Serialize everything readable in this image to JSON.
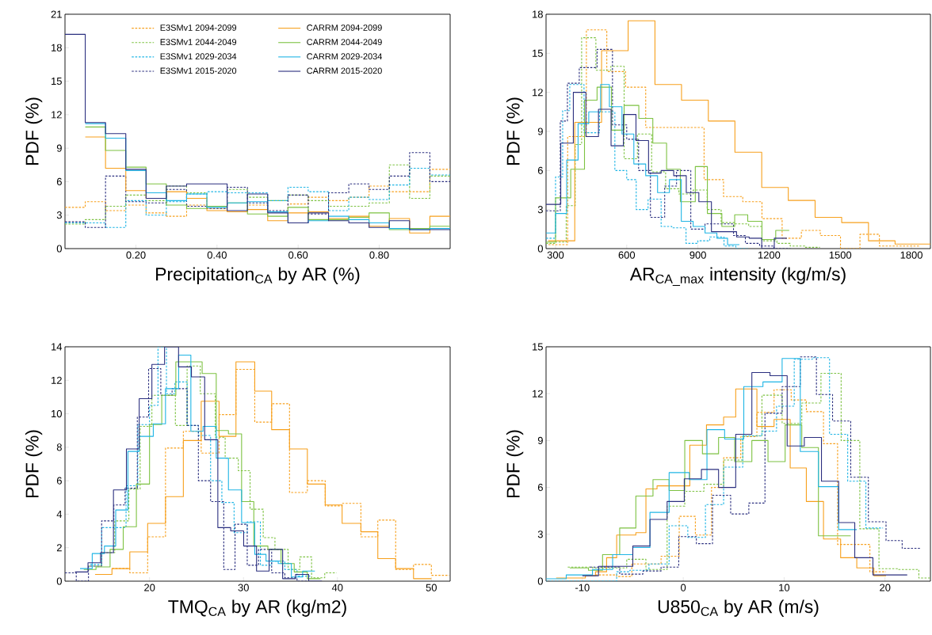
{
  "chart_data": [
    {
      "type": "step",
      "xlabel": "Precipitation$_{CA}$ by AR (%)",
      "ylabel": "PDF (%)",
      "xlim": [
        0.025,
        0.975
      ],
      "ylim": [
        0,
        21
      ],
      "xticks": [
        {
          "value": 0.2,
          "label": "0.20"
        },
        {
          "value": 0.4,
          "label": "0.40"
        },
        {
          "value": 0.6,
          "label": "0.60"
        },
        {
          "value": 0.8,
          "label": "0.80"
        }
      ],
      "yticks": [
        0,
        3,
        6,
        9,
        12,
        15,
        18,
        21
      ],
      "legend": "top",
      "series": [
        {
          "name": "E3SMv1 2094-2099",
          "color": "#f7a01c",
          "line_style": "dashed",
          "x": [
            0.025,
            0.075,
            0.125,
            0.175,
            0.225,
            0.275,
            0.325,
            0.375,
            0.425,
            0.475,
            0.525,
            0.575,
            0.625,
            0.675,
            0.725,
            0.775,
            0.825,
            0.875,
            0.925,
            0.975
          ],
          "values": [
            3.7,
            4.2,
            3.4,
            3.9,
            3.2,
            2.9,
            3.9,
            3.6,
            3.3,
            3.9,
            3.3,
            4.0,
            4.6,
            4.3,
            4.6,
            5.6,
            5.1,
            5.1,
            7.1,
            7.1
          ]
        },
        {
          "name": "E3SMv1 2044-2049",
          "color": "#7dc242",
          "line_style": "dashed",
          "x": [
            0.025,
            0.075,
            0.125,
            0.175,
            0.225,
            0.275,
            0.325,
            0.375,
            0.425,
            0.475,
            0.525,
            0.575,
            0.625,
            0.675,
            0.725,
            0.775,
            0.825,
            0.875,
            0.925,
            0.975
          ],
          "values": [
            2.2,
            2.6,
            3.8,
            4.8,
            4.3,
            5.6,
            5.0,
            3.8,
            5.3,
            4.6,
            4.3,
            4.8,
            4.3,
            3.8,
            3.8,
            4.1,
            7.5,
            4.5,
            6.5,
            6.5
          ]
        },
        {
          "name": "E3SMv1 2029-2034",
          "color": "#1fb5e5",
          "line_style": "dashed",
          "x": [
            0.025,
            0.075,
            0.125,
            0.175,
            0.225,
            0.275,
            0.325,
            0.375,
            0.425,
            0.475,
            0.525,
            0.575,
            0.625,
            0.675,
            0.725,
            0.775,
            0.825,
            0.875,
            0.925,
            0.975
          ],
          "values": [
            2.3,
            2.3,
            1.9,
            4.3,
            3.0,
            4.2,
            4.9,
            5.1,
            5.0,
            5.0,
            4.3,
            5.5,
            5.1,
            3.4,
            4.6,
            4.4,
            5.7,
            7.2,
            6.6,
            6.6
          ]
        },
        {
          "name": "E3SMv1 2015-2020",
          "color": "#2b2f7f",
          "line_style": "dashed",
          "x": [
            0.025,
            0.075,
            0.125,
            0.175,
            0.225,
            0.275,
            0.325,
            0.375,
            0.425,
            0.475,
            0.525,
            0.575,
            0.625,
            0.675,
            0.725,
            0.775,
            0.825,
            0.875,
            0.925,
            0.975
          ],
          "values": [
            2.4,
            1.9,
            6.5,
            4.2,
            4.1,
            5.3,
            3.8,
            3.6,
            5.5,
            4.1,
            3.4,
            4.8,
            3.1,
            5.0,
            5.8,
            5.3,
            6.5,
            8.6,
            6.0,
            6.0
          ]
        },
        {
          "name": "CARRM 2094-2099",
          "color": "#f7a01c",
          "line_style": "solid",
          "x": [
            0.075,
            0.125,
            0.175,
            0.225,
            0.275,
            0.325,
            0.375,
            0.425,
            0.475,
            0.525,
            0.575,
            0.625,
            0.675,
            0.725,
            0.775,
            0.825,
            0.875,
            0.925,
            0.975
          ],
          "values": [
            10.0,
            7.2,
            5.2,
            4.5,
            5.1,
            4.5,
            3.4,
            3.3,
            3.5,
            2.5,
            3.2,
            3.3,
            2.7,
            2.9,
            2.0,
            2.7,
            1.4,
            2.9,
            2.9
          ]
        },
        {
          "name": "CARRM 2044-2049",
          "color": "#7dc242",
          "line_style": "solid",
          "x": [
            0.075,
            0.125,
            0.175,
            0.225,
            0.275,
            0.325,
            0.375,
            0.425,
            0.475,
            0.525,
            0.575,
            0.625,
            0.675,
            0.725,
            0.775,
            0.825,
            0.875,
            0.925,
            0.975
          ],
          "values": [
            10.9,
            8.8,
            7.3,
            5.8,
            3.9,
            3.6,
            3.8,
            4.1,
            3.1,
            2.9,
            3.7,
            2.6,
            2.6,
            2.8,
            3.2,
            1.7,
            1.8,
            2.0,
            2.0
          ]
        },
        {
          "name": "CARRM 2029-2034",
          "color": "#1fb5e5",
          "line_style": "solid",
          "x": [
            0.075,
            0.125,
            0.175,
            0.225,
            0.275,
            0.325,
            0.375,
            0.425,
            0.475,
            0.525,
            0.575,
            0.625,
            0.675,
            0.725,
            0.775,
            0.825,
            0.875,
            0.925,
            0.975
          ],
          "values": [
            11.2,
            9.9,
            7.0,
            5.0,
            4.3,
            4.9,
            3.7,
            4.1,
            4.2,
            3.3,
            2.3,
            2.5,
            2.9,
            2.6,
            2.3,
            1.8,
            1.7,
            1.8,
            1.8
          ]
        },
        {
          "name": "CARRM 2015-2020",
          "color": "#2b2f7f",
          "line_style": "solid",
          "x": [
            0.025,
            0.075,
            0.125,
            0.175,
            0.225,
            0.275,
            0.325,
            0.375,
            0.425,
            0.475,
            0.525,
            0.575,
            0.625,
            0.675,
            0.725,
            0.775,
            0.825,
            0.875,
            0.925,
            0.975
          ],
          "values": [
            19.2,
            11.3,
            10.3,
            7.1,
            4.5,
            5.6,
            5.8,
            5.8,
            3.4,
            4.9,
            3.2,
            2.3,
            3.2,
            2.5,
            2.3,
            1.9,
            2.5,
            1.7,
            1.7,
            1.7
          ]
        }
      ]
    },
    {
      "type": "step",
      "xlabel": "AR$_{CA_max}$ intensity (kg/m/s)",
      "ylabel": "PDF (%)",
      "xlim": [
        260,
        1880
      ],
      "ylim": [
        0,
        18
      ],
      "xticks": [
        300,
        600,
        900,
        1200,
        1500,
        1800
      ],
      "yticks": [
        0,
        3,
        6,
        9,
        12,
        15,
        18
      ],
      "series": [
        {
          "color": "#f7a01c",
          "line_style": "dashed",
          "x": [
            270,
            351,
            430,
            516,
            595,
            680,
            761,
            845,
            926,
            1008,
            1089,
            1170,
            1255,
            1336,
            1416,
            1501,
            1583,
            1665,
            1746,
            1832
          ],
          "values": [
            0.3,
            8.6,
            16.8,
            13.6,
            12.4,
            9.3,
            9.3,
            9.3,
            5.3,
            4.0,
            3.6,
            2.3,
            0.8,
            1.4,
            1.0,
            0,
            1.1,
            0.2,
            0.2,
            0.2
          ]
        },
        {
          "color": "#7dc242",
          "line_style": "dashed",
          "x": [
            260,
            300,
            345,
            383,
            410,
            470,
            533,
            589,
            645,
            705,
            764,
            820,
            880,
            939,
            998,
            1058,
            1114,
            1170,
            1233,
            1289,
            1351,
            1414
          ],
          "values": [
            0.4,
            0.5,
            3.3,
            8.0,
            16.2,
            13.7,
            14.0,
            6.9,
            8.8,
            5.9,
            4.6,
            4.2,
            4.5,
            3.0,
            2.0,
            1.9,
            1.7,
            0.6,
            0.4,
            0.2,
            0.1,
            0.1
          ]
        },
        {
          "color": "#1fb5e5",
          "line_style": "dashed",
          "x": [
            260,
            300,
            330,
            360,
            420,
            485,
            550,
            600,
            640,
            690,
            745,
            790,
            850,
            900,
            950,
            1010,
            1060,
            1110
          ],
          "values": [
            0.8,
            5.5,
            10.6,
            12.6,
            8.9,
            10.5,
            6.0,
            5.3,
            3.0,
            3.8,
            1.7,
            1.6,
            0.4,
            0.6,
            0.9,
            0.2,
            0.0,
            0.0
          ]
        },
        {
          "color": "#2b2f7f",
          "line_style": "dashed",
          "x": [
            260,
            320,
            350,
            400,
            475,
            540,
            600,
            650,
            700,
            760,
            810,
            870,
            930,
            990,
            1050,
            1100,
            1160,
            1220,
            1290
          ],
          "values": [
            2.9,
            9.8,
            12.7,
            13.9,
            15.3,
            9.5,
            8.4,
            6.0,
            2.4,
            4.8,
            6.0,
            1.5,
            1.9,
            1.9,
            1.0,
            0.4,
            0.2,
            0.0,
            0.0
          ]
        },
        {
          "color": "#f7a01c",
          "line_style": "solid",
          "x": [
            269,
            381,
            494,
            606,
            719,
            831,
            944,
            1056,
            1169,
            1281,
            1394,
            1506,
            1619,
            1731,
            1844,
            1880
          ],
          "values": [
            0.6,
            9.7,
            15.2,
            17.5,
            12.6,
            11.4,
            9.8,
            7.4,
            4.7,
            3.7,
            2.4,
            2.0,
            0.6,
            0.35,
            0.35,
            0.35
          ]
        },
        {
          "color": "#7dc242",
          "line_style": "solid",
          "x": [
            260,
            300,
            364,
            422,
            475,
            536,
            589,
            651,
            710,
            768,
            826,
            889,
            940,
            1001,
            1055,
            1110,
            1170,
            1228,
            1285
          ],
          "values": [
            0.5,
            3.9,
            6.1,
            11.4,
            12.4,
            9.1,
            11.0,
            10.0,
            8.1,
            6.1,
            3.6,
            6.3,
            2.7,
            1.7,
            2.6,
            2.1,
            0.7,
            1.4,
            1.4
          ]
        },
        {
          "color": "#1fb5e5",
          "line_style": "solid",
          "x": [
            260,
            300,
            347,
            395,
            440,
            490,
            527,
            580,
            630,
            680,
            730,
            780,
            830,
            880,
            930,
            980,
            1025,
            1075
          ],
          "values": [
            1.2,
            2.7,
            6.8,
            9.6,
            10.5,
            12.6,
            10.9,
            8.8,
            6.5,
            5.6,
            4.3,
            5.3,
            2.1,
            1.7,
            1.2,
            0.8,
            0.3,
            0.3
          ]
        },
        {
          "color": "#2b2f7f",
          "line_style": "solid",
          "x": [
            260,
            322,
            375,
            428,
            481,
            534,
            586,
            639,
            692,
            745,
            798,
            851,
            904,
            957,
            1010,
            1063,
            1116,
            1169,
            1222,
            1275
          ],
          "values": [
            3.4,
            8.1,
            12.0,
            8.6,
            10.7,
            7.9,
            10.3,
            8.3,
            5.8,
            6.0,
            5.6,
            4.3,
            3.6,
            1.3,
            1.3,
            0.9,
            0.8,
            0.0,
            0.8,
            0.8
          ]
        }
      ]
    },
    {
      "type": "step",
      "xlabel": "TMQ$_{CA}$ by AR (kg/m2)",
      "ylabel": "PDF (%)",
      "xlim": [
        11,
        52
      ],
      "ylim": [
        0,
        14
      ],
      "xticks": [
        20,
        30,
        40,
        50
      ],
      "yticks": [
        0,
        2,
        4,
        6,
        8,
        10,
        12,
        14
      ],
      "series": [
        {
          "color": "#f7a01c",
          "line_style": "dashed",
          "x": [
            16.0,
            17.9,
            19.8,
            21.7,
            23.6,
            25.5,
            27.4,
            29.2,
            31.2,
            33.0,
            34.9,
            36.8,
            38.7,
            40.5,
            42.5,
            44.3,
            46.2,
            48.1,
            50.0,
            51.9
          ],
          "values": [
            0.75,
            0.5,
            2.65,
            7.95,
            8.95,
            7.65,
            9.95,
            12.65,
            9.5,
            10.6,
            5.3,
            6.0,
            4.5,
            4.65,
            2.65,
            3.65,
            0.7,
            1.0,
            0.35,
            0.35
          ]
        },
        {
          "color": "#7dc242",
          "line_style": "dashed",
          "x": [
            13.5,
            14.9,
            16.3,
            17.8,
            19.0,
            20.25,
            21.5,
            22.75,
            24.0,
            25.4,
            27.0,
            28.05,
            29.45,
            30.7,
            32.1,
            33.35,
            34.75,
            36.0,
            37.25,
            38.65,
            39.9
          ],
          "values": [
            0.9,
            1.7,
            3.6,
            5.5,
            9.25,
            11.1,
            11.1,
            9.3,
            12.85,
            11.2,
            8.6,
            7.35,
            6.6,
            4.3,
            2.6,
            1.9,
            0.7,
            1.45,
            0.2,
            0.5,
            0.5
          ]
        },
        {
          "color": "#1fb5e5",
          "line_style": "dashed",
          "x": [
            13.7,
            14.9,
            16.2,
            17.5,
            18.75,
            20.0,
            20.9,
            21.8,
            22.7,
            24.0,
            25.2,
            26.5,
            27.7,
            29.0,
            30.4,
            31.8,
            33.0,
            34.4,
            35.7,
            37.1
          ],
          "values": [
            1.0,
            3.2,
            3.2,
            5.7,
            9.35,
            10.5,
            14.0,
            11.2,
            11.9,
            9.3,
            8.7,
            6.0,
            4.7,
            2.9,
            3.55,
            0.95,
            1.2,
            0.7,
            0.3,
            0.3
          ]
        },
        {
          "color": "#2b2f7f",
          "line_style": "dashed",
          "x": [
            11.0,
            12.2,
            13.5,
            14.9,
            16.2,
            17.4,
            18.7,
            19.9,
            21.2,
            22.4,
            24.0,
            25.2,
            26.5,
            27.9,
            29.1,
            30.4,
            31.6,
            33.0,
            34.4,
            35.7,
            36.9
          ],
          "values": [
            0.5,
            0.0,
            0.9,
            3.6,
            4.55,
            5.55,
            9.8,
            12.7,
            11.1,
            11.5,
            9.3,
            6.0,
            4.75,
            0.7,
            3.4,
            0.95,
            1.9,
            0.5,
            0.2,
            0.0,
            0.0
          ]
        },
        {
          "color": "#f7a01c",
          "line_style": "solid",
          "x": [
            14.2,
            16.0,
            17.9,
            19.8,
            21.7,
            23.6,
            25.5,
            27.4,
            29.2,
            31.2,
            33.0,
            34.9,
            36.8,
            38.7,
            40.5,
            42.5,
            44.3,
            46.2,
            48.1,
            50.0
          ],
          "values": [
            0.4,
            0.75,
            1.75,
            3.45,
            5.05,
            8.4,
            10.75,
            8.65,
            13.1,
            11.35,
            9.05,
            7.9,
            5.8,
            4.55,
            3.45,
            2.95,
            1.35,
            0.75,
            0.15,
            0.15
          ]
        },
        {
          "color": "#7dc242",
          "line_style": "solid",
          "x": [
            13.0,
            14.3,
            15.8,
            17.2,
            18.6,
            20.0,
            21.3,
            22.8,
            24.2,
            25.6,
            27.1,
            28.4,
            29.8,
            31.1,
            32.6,
            34.0,
            35.4,
            36.8,
            38.2
          ],
          "values": [
            0.7,
            0.85,
            1.9,
            3.25,
            5.8,
            9.35,
            11.1,
            13.1,
            13.1,
            12.4,
            9.0,
            8.8,
            4.75,
            2.1,
            1.9,
            1.05,
            0.55,
            0.15,
            0.15
          ]
        },
        {
          "color": "#1fb5e5",
          "line_style": "solid",
          "x": [
            12.6,
            13.9,
            15.2,
            16.4,
            17.7,
            18.9,
            20.4,
            21.7,
            23.1,
            24.4,
            25.7,
            27.1,
            28.4,
            29.8,
            31.2,
            32.4,
            33.7,
            35.1,
            36.3,
            37.6
          ],
          "values": [
            0.75,
            1.65,
            2.1,
            4.25,
            7.75,
            8.65,
            9.4,
            11.5,
            13.5,
            8.95,
            9.25,
            7.35,
            5.45,
            3.5,
            1.6,
            1.2,
            1.05,
            0.25,
            0.6,
            0.6
          ]
        },
        {
          "color": "#2b2f7f",
          "line_style": "solid",
          "x": [
            12.07,
            13.45,
            14.79,
            16.16,
            17.54,
            18.9,
            20.25,
            21.6,
            23.09,
            24.46,
            25.87,
            27.27,
            28.64,
            30.02,
            31.39,
            32.73,
            34.17,
            35.54,
            36.94,
            38.35
          ],
          "values": [
            0.55,
            1.1,
            1.7,
            5.45,
            7.9,
            10.9,
            12.95,
            14.0,
            12.8,
            12.2,
            8.45,
            3.2,
            3.0,
            2.1,
            0.6,
            1.9,
            0.15,
            0.4,
            0.0,
            0.0
          ]
        }
      ]
    },
    {
      "type": "step",
      "xlabel": "U850$_{CA}$ by AR (m/s)",
      "ylabel": "PDF (%)",
      "xlim": [
        -13.6,
        24.5
      ],
      "ylim": [
        0,
        15
      ],
      "xticks": [
        -10,
        0,
        10,
        20
      ],
      "yticks": [
        0,
        3,
        6,
        9,
        12,
        15
      ],
      "series": [
        {
          "color": "#f7a01c",
          "line_style": "dashed",
          "x": [
            -8.7,
            -6.6,
            -5.1,
            -3.7,
            -2.2,
            -0.4,
            1.2,
            2.8,
            4.0,
            5.7,
            7.3,
            9.0,
            10.7,
            12.2,
            13.9,
            15.3,
            16.9,
            18.5,
            20.1
          ],
          "values": [
            0.4,
            0.3,
            1.1,
            1.1,
            1.6,
            4.15,
            2.95,
            6.0,
            7.9,
            9.25,
            10.8,
            12.25,
            11.6,
            10.85,
            8.8,
            2.35,
            2.35,
            0.6,
            0.6
          ]
        },
        {
          "color": "#7dc242",
          "line_style": "dashed",
          "x": [
            -11.45,
            -9.0,
            -5.6,
            -3.7,
            -1.6,
            0.15,
            2.05,
            4.0,
            5.9,
            7.8,
            9.8,
            11.75,
            13.65,
            15.65,
            17.5,
            19.4,
            21.3,
            23.35,
            24.5
          ],
          "values": [
            0.9,
            0.85,
            1.4,
            0.75,
            4.8,
            5.75,
            6.2,
            7.75,
            9.3,
            11.9,
            10.1,
            11.4,
            13.3,
            9.0,
            3.35,
            0.8,
            0.75,
            0.2,
            0.2
          ]
        },
        {
          "color": "#1fb5e5",
          "line_style": "dashed",
          "x": [
            -13.6,
            -6.6,
            -5.3,
            -3.4,
            -1.4,
            0.45,
            2.2,
            4.0,
            5.9,
            7.8,
            9.25,
            11.0,
            12.8,
            14.5,
            16.3,
            18.1,
            19.8
          ],
          "values": [
            0.0,
            0.6,
            0.7,
            1.1,
            3.55,
            2.8,
            4.9,
            7.3,
            9.3,
            9.6,
            11.2,
            14.2,
            14.3,
            9.4,
            6.4,
            3.4,
            3.4
          ]
        },
        {
          "color": "#2b2f7f",
          "line_style": "dashed",
          "x": [
            -9.25,
            -6.3,
            -4.0,
            -2.2,
            -0.45,
            1.3,
            2.9,
            4.7,
            6.5,
            8.1,
            9.8,
            11.6,
            13.2,
            14.8,
            16.6,
            18.35,
            20.1,
            21.7,
            23.5
          ],
          "values": [
            0.9,
            0.45,
            0.65,
            0.9,
            2.85,
            2.4,
            5.5,
            4.3,
            5.0,
            10.75,
            12.45,
            14.35,
            11.95,
            10.25,
            6.65,
            3.8,
            2.6,
            2.1,
            2.1
          ]
        },
        {
          "color": "#f7a01c",
          "line_style": "solid",
          "x": [
            -12.6,
            -9.7,
            -8.7,
            -7.6,
            -6.6,
            -4.7,
            -3.7,
            -2.6,
            0.65,
            2.3,
            4.0,
            5.2,
            7.3,
            9.0,
            10.6,
            12.2,
            13.9,
            15.6,
            17.2,
            18.9,
            20.1
          ],
          "values": [
            0.2,
            0.35,
            0.6,
            1.5,
            2.95,
            3.1,
            5.9,
            6.1,
            8.7,
            10.0,
            10.5,
            12.3,
            9.9,
            10.35,
            7.25,
            5.1,
            2.7,
            1.5,
            0.85,
            0.35,
            0.35
          ]
        },
        {
          "color": "#7dc242",
          "line_style": "solid",
          "x": [
            -11.25,
            -9.4,
            -8.0,
            -6.3,
            -4.7,
            -3.0,
            -1.4,
            0.15,
            1.9,
            3.5,
            5.1,
            6.8,
            8.4,
            10.1,
            11.75,
            13.4,
            15.0,
            16.6
          ],
          "values": [
            0.85,
            0.7,
            1.7,
            3.4,
            5.45,
            6.5,
            5.8,
            9.0,
            8.15,
            9.2,
            7.65,
            9.0,
            7.65,
            10.0,
            8.55,
            2.9,
            2.9,
            2.9
          ]
        },
        {
          "color": "#1fb5e5",
          "line_style": "solid",
          "x": [
            -13.6,
            -11.6,
            -9.0,
            -7.0,
            -5.0,
            -3.3,
            -1.4,
            0.6,
            2.35,
            4.1,
            6.0,
            7.9,
            9.8,
            11.6,
            13.4,
            15.4,
            17.2
          ],
          "values": [
            0.15,
            0.4,
            0.75,
            1.7,
            2.15,
            4.4,
            6.95,
            6.5,
            9.7,
            9.1,
            12.45,
            12.75,
            14.25,
            8.3,
            6.05,
            3.3,
            3.3
          ]
        },
        {
          "color": "#2b2f7f",
          "line_style": "solid",
          "x": [
            -10.0,
            -8.4,
            -5.0,
            -3.3,
            -1.6,
            0.1,
            1.8,
            3.5,
            5.2,
            6.8,
            8.6,
            10.3,
            12.0,
            13.7,
            15.4,
            17.0,
            18.8,
            22.2
          ],
          "values": [
            0.35,
            0.95,
            2.25,
            3.95,
            5.1,
            6.55,
            7.15,
            6.0,
            9.4,
            13.35,
            13.15,
            8.65,
            9.2,
            6.4,
            3.75,
            1.5,
            0.4,
            0.4
          ]
        }
      ]
    }
  ]
}
